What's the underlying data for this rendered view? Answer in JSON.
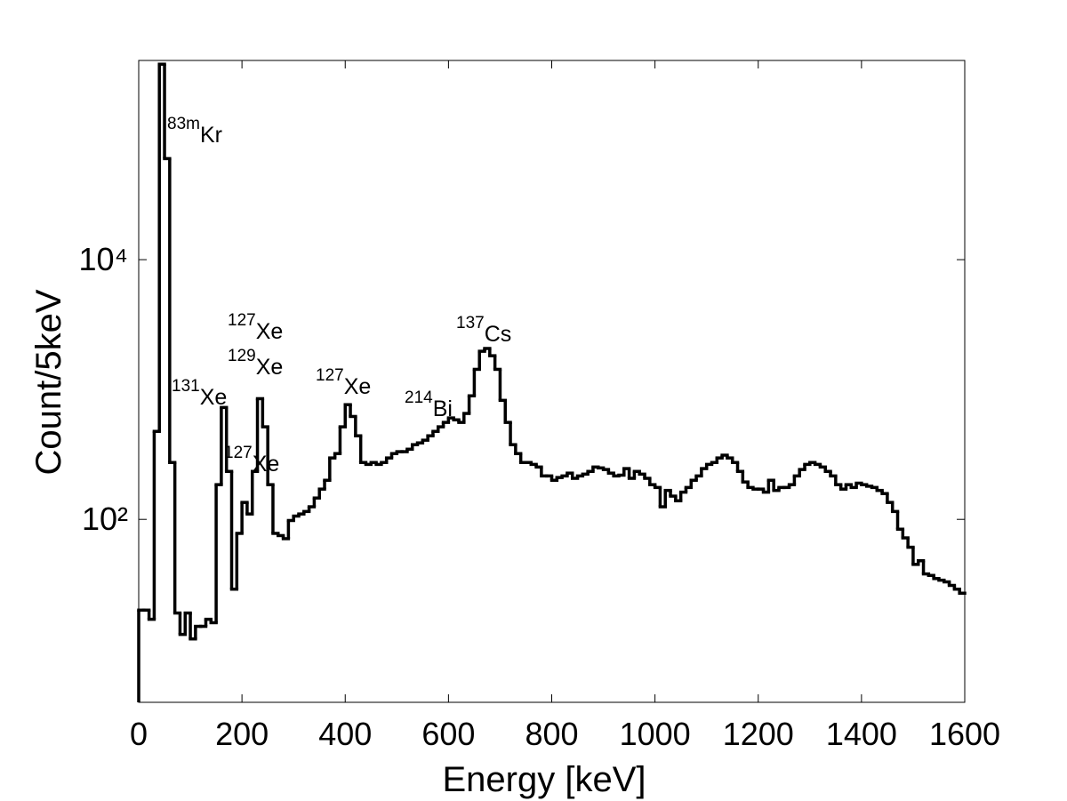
{
  "chart_data": {
    "type": "histogram",
    "xlabel": "Energy [keV]",
    "ylabel": "Count/5keV",
    "yscale": "log",
    "color": "#000000",
    "bins": [
      0,
      10,
      20,
      30,
      40,
      50,
      60,
      70,
      80,
      90,
      100,
      110,
      120,
      130,
      140,
      150,
      160,
      170,
      180,
      190,
      200,
      210,
      220,
      230,
      240,
      250,
      260,
      270,
      280,
      290,
      300,
      310,
      320,
      330,
      340,
      350,
      360,
      370,
      380,
      390,
      400,
      410,
      420,
      430,
      440,
      450,
      460,
      470,
      480,
      490,
      500,
      510,
      520,
      530,
      540,
      550,
      560,
      570,
      580,
      590,
      600,
      610,
      620,
      630,
      640,
      650,
      660,
      670,
      680,
      690,
      700,
      710,
      720,
      730,
      740,
      750,
      760,
      770,
      780,
      790,
      800,
      810,
      820,
      830,
      840,
      850,
      860,
      870,
      880,
      890,
      900,
      910,
      920,
      930,
      940,
      950,
      960,
      970,
      980,
      990,
      1000,
      1010,
      1020,
      1030,
      1040,
      1050,
      1060,
      1070,
      1080,
      1090,
      1100,
      1110,
      1120,
      1130,
      1140,
      1150,
      1160,
      1170,
      1180,
      1190,
      1200,
      1210,
      1220,
      1230,
      1240,
      1250,
      1260,
      1270,
      1280,
      1290,
      1300,
      1310,
      1320,
      1330,
      1340,
      1350,
      1360,
      1370,
      1380,
      1390,
      1400,
      1410,
      1420,
      1430,
      1440,
      1450,
      1460,
      1470,
      1480,
      1490,
      1500,
      1510,
      1520,
      1530,
      1540,
      1550,
      1560,
      1570,
      1580,
      1590,
      1600
    ],
    "counts": [
      20,
      20,
      17,
      476,
      320000,
      60000,
      274,
      19,
      13,
      19,
      12,
      15,
      15,
      17,
      16,
      185,
      727,
      234,
      29,
      78,
      135,
      110,
      234,
      850,
      516,
      185,
      78,
      75,
      71,
      98,
      106,
      110,
      115,
      125,
      146,
      171,
      200,
      297,
      321,
      516,
      764,
      620,
      440,
      274,
      265,
      274,
      265,
      274,
      297,
      321,
      332,
      332,
      347,
      376,
      388,
      407,
      440,
      476,
      516,
      558,
      604,
      584,
      558,
      654,
      894,
      1430,
      1970,
      2070,
      1820,
      1430,
      825,
      558,
      376,
      321,
      274,
      274,
      265,
      253,
      216,
      216,
      200,
      210,
      216,
      227,
      207,
      216,
      223,
      234,
      253,
      249,
      242,
      227,
      216,
      219,
      246,
      207,
      234,
      223,
      207,
      185,
      176,
      125,
      167,
      151,
      139,
      162,
      176,
      200,
      216,
      246,
      265,
      274,
      297,
      312,
      297,
      274,
      234,
      194,
      176,
      171,
      171,
      162,
      200,
      167,
      176,
      176,
      185,
      216,
      242,
      265,
      274,
      265,
      253,
      234,
      216,
      185,
      171,
      185,
      176,
      190,
      185,
      180,
      176,
      167,
      158,
      135,
      115,
      84,
      72,
      61,
      45,
      48,
      38,
      37,
      35,
      34,
      33,
      31,
      29,
      27
    ],
    "xlim": [
      0,
      1600
    ],
    "ylim": [
      3.9,
      342000
    ],
    "xticks": [
      0,
      200,
      400,
      600,
      800,
      1000,
      1200,
      1400,
      1600
    ],
    "yticks": [
      {
        "value": 100,
        "label": "10²"
      },
      {
        "value": 10000,
        "label": "10⁴"
      }
    ],
    "annotations": [
      {
        "mass": "83m",
        "element": "Kr"
      },
      {
        "mass": "131",
        "element": "Xe"
      },
      {
        "mass": "127",
        "element": "Xe"
      },
      {
        "mass": "129",
        "element": "Xe"
      },
      {
        "mass": "127",
        "element": "Xe"
      },
      {
        "mass": "127",
        "element": "Xe"
      },
      {
        "mass": "214",
        "element": "Bi"
      },
      {
        "mass": "137",
        "element": "Cs"
      }
    ]
  }
}
